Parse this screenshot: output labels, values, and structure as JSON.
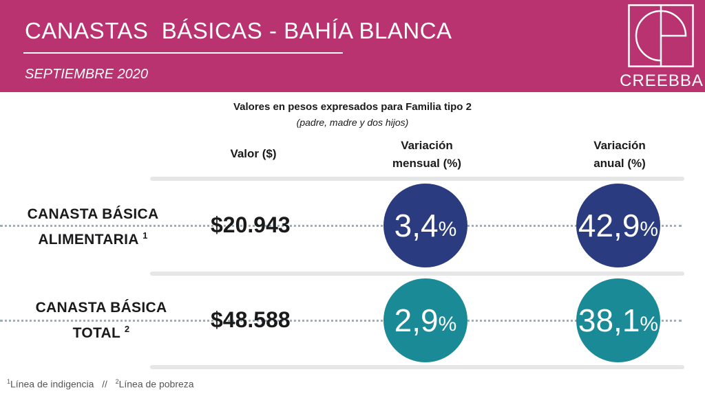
{
  "header": {
    "title": "CANASTAS  BÁSICAS - BAHÍA BLANCA",
    "subtitle": "SEPTIEMBRE 2020",
    "logo_text": "CREEBBA"
  },
  "caption": {
    "main": "Valores en pesos expresados para Familia tipo 2",
    "sub": "(padre, madre y dos hijos)"
  },
  "columns": {
    "valor": "Valor ($)",
    "mensual_line1": "Variación",
    "mensual_line2": "mensual (%)",
    "anual_line1": "Variación",
    "anual_line2": "anual (%)"
  },
  "rows": [
    {
      "label_line1": "CANASTA BÁSICA",
      "label_line2": "ALIMENTARIA",
      "note": "1",
      "valor": "$20.943",
      "mensual": "3,4",
      "anual": "42,9",
      "percent": "%",
      "color": "#2a3b7f"
    },
    {
      "label_line1": "CANASTA BÁSICA",
      "label_line2": "TOTAL",
      "note": "2",
      "valor": "$48.588",
      "mensual": "2,9",
      "anual": "38,1",
      "percent": "%",
      "color": "#1a8a96"
    }
  ],
  "footnotes": {
    "n1": "1",
    "t1": "Línea de indigencia",
    "sep": "//",
    "n2": "2",
    "t2": "Línea de pobreza"
  },
  "colors": {
    "header_bg": "#b8336f",
    "row1_circle": "#2a3b7f",
    "row2_circle": "#1a8a96"
  }
}
